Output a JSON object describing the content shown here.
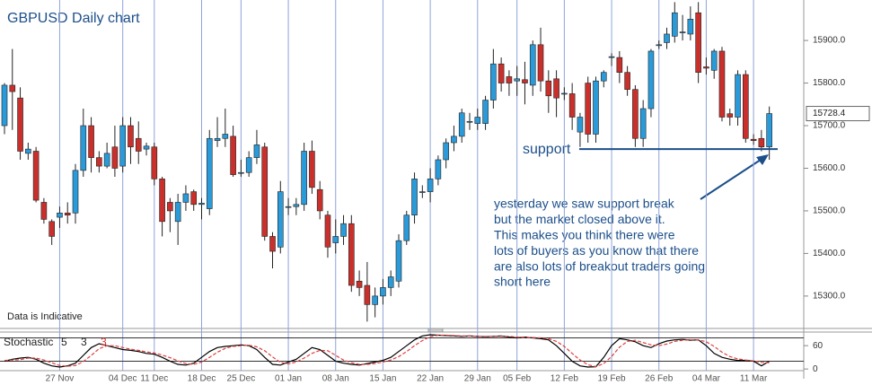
{
  "chart_data": [
    {
      "type": "candlestick",
      "title": "GBPUSD Daily chart",
      "footnote": "Data is Indicative",
      "categories": [
        null,
        null,
        null,
        null,
        null,
        null,
        null,
        "27 Nov",
        null,
        null,
        null,
        null,
        null,
        null,
        null,
        "04 Dec",
        null,
        null,
        null,
        "11 Dec",
        null,
        null,
        null,
        null,
        null,
        "18 Dec",
        null,
        null,
        null,
        null,
        "25 Dec",
        null,
        null,
        null,
        null,
        null,
        "01 Jan",
        null,
        null,
        null,
        null,
        null,
        "08 Jan",
        null,
        null,
        null,
        null,
        null,
        "15 Jan",
        null,
        null,
        null,
        null,
        null,
        "22 Jan",
        null,
        null,
        null,
        null,
        null,
        "29 Jan",
        null,
        null,
        null,
        null,
        "05 Feb",
        null,
        null,
        null,
        null,
        null,
        "12 Feb",
        null,
        null,
        null,
        null,
        null,
        "19 Feb",
        null,
        null,
        null,
        null,
        null,
        "26 Feb",
        null,
        null,
        null,
        null,
        null,
        "04 Mar",
        null,
        null,
        null,
        null,
        null,
        "11 Mar",
        null,
        null
      ],
      "open": [
        15700,
        15795,
        15765,
        15635,
        15640,
        15520,
        15475,
        15485,
        15495,
        15495,
        15595,
        15700,
        15625,
        15605,
        15650,
        15605,
        15700,
        15670,
        15645,
        15650,
        15575,
        15520,
        15475,
        15520,
        15545,
        15515,
        15505,
        15665,
        15670,
        15675,
        15590,
        15590,
        15625,
        15650,
        15440,
        15415,
        15510,
        15510,
        15515,
        15640,
        15550,
        15490,
        15425,
        15440,
        15470,
        15335,
        15325,
        15280,
        15300,
        15320,
        15335,
        15430,
        15490,
        15545,
        15545,
        15575,
        15620,
        15660,
        15675,
        15710,
        15705,
        15705,
        15760,
        15845,
        15815,
        15805,
        15808,
        15795,
        15890,
        15805,
        15810,
        15776,
        15775,
        15685,
        15800,
        15680,
        15805,
        15862,
        15860,
        15825,
        15785,
        15670,
        15740,
        15888,
        15895,
        15910,
        15920,
        15915,
        15965,
        15838,
        15830,
        15875,
        15728,
        15720,
        15820,
        15668,
        15670,
        15650
      ],
      "high": [
        15800,
        15880,
        15790,
        15660,
        15650,
        15530,
        15480,
        15510,
        15520,
        15610,
        15740,
        15720,
        15640,
        15660,
        15700,
        15720,
        15720,
        15710,
        15660,
        15660,
        15580,
        15530,
        15540,
        15560,
        15550,
        15530,
        15690,
        15720,
        15740,
        15700,
        15620,
        15640,
        15690,
        15660,
        15450,
        15570,
        15530,
        15530,
        15660,
        15665,
        15570,
        15500,
        15480,
        15490,
        15490,
        15360,
        15380,
        15320,
        15340,
        15360,
        15445,
        15500,
        15590,
        15560,
        15600,
        15630,
        15670,
        15700,
        15740,
        15730,
        15740,
        15770,
        15880,
        15860,
        15830,
        15840,
        15850,
        15900,
        15930,
        15830,
        15830,
        15790,
        15800,
        15730,
        15815,
        15815,
        15830,
        15870,
        15875,
        15840,
        15795,
        15760,
        15880,
        15900,
        15930,
        15990,
        15960,
        15980,
        15990,
        15860,
        15880,
        15885,
        15740,
        15830,
        15830,
        15680,
        15690,
        15745
      ],
      "low": [
        15680,
        15690,
        15620,
        15620,
        15520,
        15470,
        15420,
        15460,
        15470,
        15470,
        15580,
        15590,
        15590,
        15600,
        15580,
        15590,
        15610,
        15610,
        15630,
        15560,
        15440,
        15450,
        15420,
        15500,
        15500,
        15480,
        15490,
        15650,
        15650,
        15580,
        15580,
        15580,
        15610,
        15430,
        15365,
        15400,
        15490,
        15490,
        15500,
        15540,
        15480,
        15390,
        15400,
        15420,
        15310,
        15300,
        15240,
        15250,
        15280,
        15300,
        15320,
        15420,
        15470,
        15530,
        15520,
        15560,
        15600,
        15640,
        15660,
        15690,
        15690,
        15690,
        15740,
        15780,
        15770,
        15770,
        15750,
        15770,
        15780,
        15730,
        15720,
        15760,
        15690,
        15650,
        15660,
        15660,
        15790,
        15840,
        15800,
        15770,
        15650,
        15650,
        15720,
        15880,
        15880,
        15895,
        15900,
        15900,
        15800,
        15820,
        15810,
        15710,
        15700,
        15700,
        15660,
        15655,
        15640,
        15620
      ],
      "close": [
        15795,
        15780,
        15640,
        15645,
        15525,
        15480,
        15440,
        15495,
        15490,
        15595,
        15700,
        15625,
        15605,
        15635,
        15600,
        15700,
        15650,
        15640,
        15652,
        15575,
        15475,
        15500,
        15520,
        15540,
        15515,
        15518,
        15670,
        15670,
        15680,
        15585,
        15590,
        15625,
        15655,
        15440,
        15405,
        15545,
        15510,
        15515,
        15640,
        15555,
        15500,
        15415,
        15440,
        15470,
        15325,
        15320,
        15280,
        15300,
        15320,
        15345,
        15430,
        15490,
        15575,
        15545,
        15575,
        15620,
        15660,
        15675,
        15730,
        15710,
        15720,
        15760,
        15845,
        15800,
        15800,
        15810,
        15800,
        15890,
        15805,
        15770,
        15765,
        15776,
        15720,
        15720,
        15680,
        15805,
        15825,
        15862,
        15825,
        15785,
        15670,
        15740,
        15875,
        15890,
        15915,
        15965,
        15920,
        15950,
        15825,
        15835,
        15875,
        15720,
        15720,
        15820,
        15670,
        15665,
        15650,
        15728.4
      ],
      "up_color": "#2b9ad8",
      "down_color": "#c9302c",
      "last_price": 15728.4,
      "support_level": 15645,
      "support_label": "support",
      "note": [
        "yesterday we saw support break",
        "but the market closed above it.",
        "This makes you think there were",
        "lots of buyers as you know that there",
        "are also lots of breakout traders going",
        "short here"
      ],
      "ylim": [
        15226,
        15995
      ],
      "yticks": [
        {
          "value": 15300,
          "label": "15300.0"
        },
        {
          "value": 15400,
          "label": "15400.0"
        },
        {
          "value": 15500,
          "label": "15500.0"
        },
        {
          "value": 15600,
          "label": "15600.0"
        },
        {
          "value": 15700,
          "label": "15700.0"
        },
        {
          "value": 15800,
          "label": "15800.0"
        },
        {
          "value": 15900,
          "label": "15900.0"
        }
      ]
    },
    {
      "type": "line",
      "title": "Stochastic",
      "params": [
        5,
        3,
        3
      ],
      "param_colors": [
        "#222222",
        "#222222",
        "#d03030"
      ],
      "series": [
        {
          "color": "#000000",
          "values": [
            20,
            25,
            28,
            30,
            25,
            15,
            8,
            5,
            8,
            15,
            35,
            55,
            65,
            60,
            55,
            50,
            48,
            45,
            40,
            38,
            30,
            20,
            12,
            10,
            15,
            30,
            45,
            55,
            58,
            60,
            62,
            60,
            50,
            30,
            12,
            10,
            18,
            25,
            40,
            55,
            50,
            35,
            20,
            15,
            12,
            10,
            14,
            18,
            22,
            30,
            45,
            60,
            75,
            85,
            88,
            87,
            86,
            85,
            84,
            85,
            84,
            83,
            84,
            85,
            82,
            80,
            82,
            80,
            78,
            75,
            60,
            40,
            20,
            8,
            5,
            6,
            30,
            60,
            78,
            75,
            70,
            60,
            55,
            65,
            72,
            75,
            76,
            74,
            75,
            60,
            40,
            30,
            25,
            22,
            22,
            20,
            8,
            20
          ]
        },
        {
          "color": "#e04040",
          "dashed": true,
          "values": [
            22,
            23,
            24,
            28,
            28,
            23,
            16,
            9,
            7,
            9,
            19,
            35,
            52,
            60,
            60,
            55,
            51,
            48,
            44,
            41,
            36,
            29,
            21,
            14,
            12,
            18,
            30,
            43,
            53,
            58,
            60,
            61,
            57,
            47,
            31,
            17,
            13,
            18,
            28,
            40,
            48,
            47,
            35,
            23,
            16,
            12,
            12,
            14,
            18,
            23,
            32,
            45,
            60,
            73,
            83,
            87,
            87,
            86,
            85,
            85,
            84,
            84,
            84,
            84,
            84,
            82,
            81,
            81,
            80,
            78,
            71,
            58,
            40,
            23,
            11,
            6,
            14,
            32,
            56,
            71,
            74,
            68,
            62,
            60,
            64,
            71,
            74,
            75,
            75,
            70,
            58,
            43,
            32,
            26,
            23,
            21,
            17,
            16
          ]
        }
      ],
      "levels": [
        20,
        80
      ],
      "ylim": [
        -25,
        95
      ],
      "yticks": [
        0,
        60
      ]
    }
  ]
}
